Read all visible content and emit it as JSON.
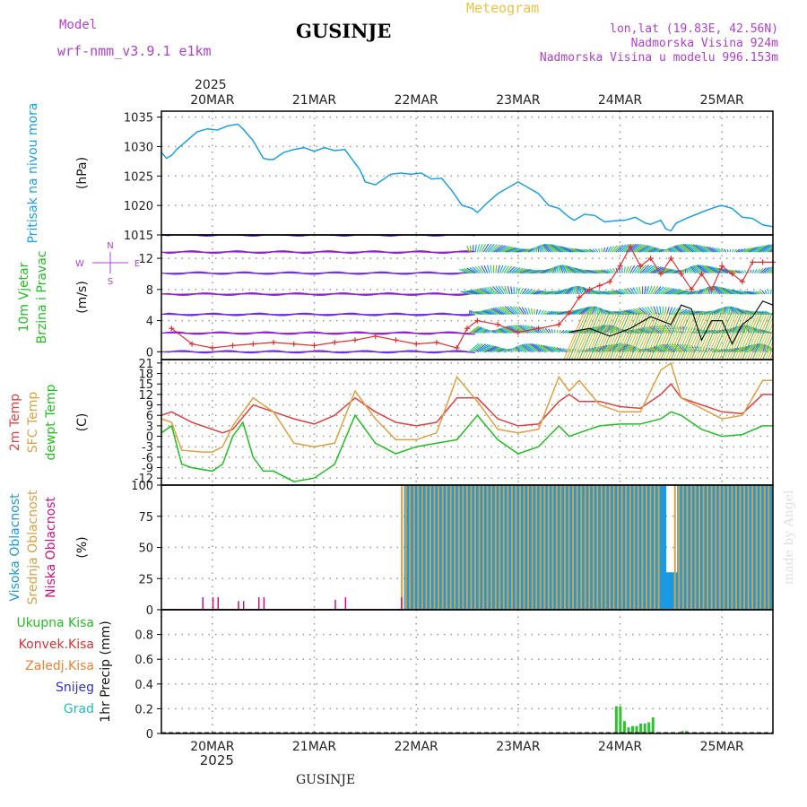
{
  "header": {
    "model_label": "Model",
    "model_name": "wrf-nmm_v3.9.1 e1km",
    "station": "GUSINJE",
    "meteogram": "Meteogram",
    "lonlat": "lon,lat (19.83E, 42.56N)",
    "elevation": "Nadmorska Visina 924m",
    "model_elevation": "Nadmorska Visina u modelu 996.153m",
    "made_by": "made by Angel",
    "footer": "GUSINJE"
  },
  "colors": {
    "pressure": "#1aa0e6",
    "wind_label": "#20c020",
    "temp": "#e04040",
    "sfc": "#e0a040",
    "dew": "#20c020",
    "high_cloud": "#1a9ae0",
    "mid_cloud": "#d8a040",
    "low_cloud": "#d01080",
    "precip": "#30c030",
    "grid": "#999999"
  },
  "chart_data": {
    "type": "meteogram",
    "time_axis": {
      "year": "2025",
      "day_labels": [
        "20MAR",
        "21MAR",
        "22MAR",
        "23MAR",
        "24MAR",
        "25MAR"
      ],
      "start_day": 19.5,
      "end_day": 25.5
    },
    "panels": [
      {
        "id": "pressure",
        "type": "line",
        "ylabel_lines": [
          "Pritisak na nivou mora"
        ],
        "unit": "(hPa)",
        "yticks": [
          1015,
          1020,
          1025,
          1030,
          1035
        ],
        "ylim": [
          1015,
          1036
        ],
        "series": [
          {
            "x": [
              19.5,
              19.55,
              19.6,
              19.65,
              19.75,
              19.85,
              19.95,
              20.05,
              20.15,
              20.25,
              20.3,
              20.4,
              20.5,
              20.55,
              20.6,
              20.7,
              20.8,
              20.9,
              21.0,
              21.1,
              21.2,
              21.3,
              21.45,
              21.5,
              21.6,
              21.75,
              21.85,
              21.95,
              22.05,
              22.15,
              22.25,
              22.35,
              22.45,
              22.55,
              22.6,
              22.7,
              22.8,
              22.9,
              23.0,
              23.1,
              23.2,
              23.3,
              23.4,
              23.5,
              23.55,
              23.65,
              23.75,
              23.85,
              23.95,
              24.05,
              24.15,
              24.25,
              24.3,
              24.4,
              24.45,
              24.5,
              24.55,
              24.65,
              24.75,
              24.85,
              24.95,
              25.0,
              25.1,
              25.2,
              25.3,
              25.4,
              25.5
            ],
            "y": [
              1029,
              1028,
              1028.5,
              1029.5,
              1031,
              1032.5,
              1033,
              1032.8,
              1033.5,
              1033.8,
              1033,
              1031,
              1028,
              1027.8,
              1027.8,
              1029,
              1029.5,
              1029.8,
              1029.2,
              1029.8,
              1029.3,
              1029.5,
              1026,
              1024,
              1023.5,
              1025.3,
              1025.5,
              1025.3,
              1025.5,
              1024.5,
              1024.6,
              1022.5,
              1020,
              1019.5,
              1018.8,
              1020.5,
              1022,
              1023,
              1024,
              1023,
              1022,
              1020,
              1019.5,
              1018,
              1017.5,
              1018.5,
              1018.3,
              1017.2,
              1017.4,
              1017.5,
              1018,
              1017,
              1016.8,
              1017.5,
              1016,
              1015.7,
              1017,
              1017.8,
              1018.5,
              1019.2,
              1019.8,
              1020,
              1019.5,
              1018,
              1017.8,
              1016.7,
              1016.4
            ]
          }
        ]
      },
      {
        "id": "wind",
        "type": "wind_barbs",
        "ylabel_lines": [
          "10m Vjetar",
          "Brzina i Pravac"
        ],
        "unit": "(m/s)",
        "compass": [
          "N",
          "S",
          "W",
          "E"
        ],
        "yticks": [
          0,
          4,
          8,
          12
        ],
        "ylim": [
          -1,
          15
        ],
        "series": [
          {
            "name": "speed_red",
            "x": [
              19.6,
              19.8,
              20.0,
              20.2,
              20.4,
              20.6,
              20.8,
              21.0,
              21.2,
              21.4,
              21.6,
              21.8,
              22.0,
              22.2,
              22.4,
              22.5,
              22.6,
              22.8,
              23.0,
              23.2,
              23.4,
              23.5,
              23.6,
              23.7,
              23.8,
              23.9,
              24.0,
              24.1,
              24.2,
              24.3,
              24.4,
              24.5,
              24.6,
              24.7,
              24.8,
              24.9,
              25.0,
              25.1,
              25.2,
              25.3,
              25.4,
              25.5
            ],
            "y": [
              3,
              1,
              0.5,
              0.8,
              1,
              1.2,
              1,
              0.8,
              1.2,
              1.5,
              2,
              1.5,
              1,
              1.2,
              0.5,
              3,
              4,
              3.5,
              2.5,
              3,
              3.5,
              5,
              7,
              8,
              8.5,
              9,
              11,
              13.5,
              11,
              12,
              10,
              12,
              10,
              8,
              10,
              8,
              11,
              10,
              9,
              11.5,
              11.5,
              11.5
            ]
          },
          {
            "name": "speed_black",
            "x": [
              23.5,
              23.7,
              23.9,
              24.1,
              24.3,
              24.5,
              24.6,
              24.7,
              24.8,
              24.9,
              25.0,
              25.1,
              25.2,
              25.3,
              25.4,
              25.5
            ],
            "y": [
              2.5,
              3,
              2,
              3,
              4.5,
              3.5,
              6,
              5.5,
              1.5,
              4,
              4,
              1,
              3.5,
              4.5,
              6.5,
              6
            ]
          }
        ],
        "barbs": {
          "rows": [
            0,
            2.4,
            4.8,
            7.4,
            10.1,
            12.8,
            15
          ],
          "color_old": "#9020d0",
          "color_new": [
            "#20a0e0",
            "#30d0a0",
            "#70c030",
            "#4060e0"
          ]
        }
      },
      {
        "id": "temperature",
        "type": "line",
        "ylabel_lines": [
          "2m Temp",
          "SFC Temp",
          "dewpt Temp"
        ],
        "unit": "(C)",
        "yticks": [
          -12,
          -9,
          -6,
          -3,
          0,
          3,
          6,
          9,
          12,
          15,
          18,
          21
        ],
        "ylim": [
          -14,
          22
        ],
        "series": [
          {
            "name": "2m Temp",
            "x": [
              19.5,
              19.6,
              19.8,
              20.0,
              20.1,
              20.2,
              20.4,
              20.6,
              20.8,
              21.0,
              21.2,
              21.4,
              21.6,
              21.8,
              22.0,
              22.2,
              22.4,
              22.6,
              22.8,
              23.0,
              23.2,
              23.4,
              23.5,
              23.6,
              23.8,
              24.0,
              24.2,
              24.4,
              24.5,
              24.6,
              24.8,
              25.0,
              25.2,
              25.4,
              25.5
            ],
            "y": [
              6,
              7,
              4,
              2,
              1,
              2,
              9,
              7,
              5,
              3.5,
              6,
              11,
              7,
              4,
              3,
              4,
              11,
              11,
              5,
              3,
              3.5,
              10,
              12,
              10,
              10,
              8.5,
              8,
              12,
              15,
              11,
              9,
              7,
              6.5,
              12,
              12
            ]
          },
          {
            "name": "SFC Temp",
            "x": [
              19.5,
              19.6,
              19.7,
              19.9,
              20.0,
              20.1,
              20.2,
              20.4,
              20.6,
              20.8,
              21.0,
              21.2,
              21.4,
              21.6,
              21.8,
              22.0,
              22.2,
              22.4,
              22.6,
              22.8,
              23.0,
              23.2,
              23.4,
              23.5,
              23.6,
              23.8,
              24.0,
              24.2,
              24.4,
              24.5,
              24.6,
              24.8,
              25.0,
              25.2,
              25.4,
              25.5
            ],
            "y": [
              5,
              4,
              -4,
              -4.5,
              -4.5,
              -3,
              3,
              11,
              7,
              -2,
              -3,
              -2,
              13,
              5,
              -1,
              -1,
              1,
              17,
              10,
              2,
              1,
              2,
              17,
              13,
              16,
              9,
              7,
              7,
              19,
              21,
              11,
              8,
              5,
              6,
              16,
              16
            ]
          },
          {
            "name": "dewpt Temp",
            "x": [
              19.5,
              19.6,
              19.7,
              19.8,
              20.0,
              20.1,
              20.2,
              20.3,
              20.4,
              20.5,
              20.6,
              20.8,
              21.0,
              21.2,
              21.4,
              21.6,
              21.8,
              22.0,
              22.2,
              22.4,
              22.6,
              22.8,
              23.0,
              23.2,
              23.4,
              23.5,
              23.6,
              23.8,
              24.0,
              24.2,
              24.4,
              24.5,
              24.6,
              24.8,
              25.0,
              25.2,
              25.4,
              25.5
            ],
            "y": [
              1,
              3,
              -8,
              -9,
              -10,
              -8,
              0,
              4,
              -6,
              -10,
              -10,
              -13,
              -12,
              -8,
              6,
              -2,
              -5,
              -3,
              -2,
              -1,
              6,
              -1,
              -5,
              -3,
              3,
              0,
              1,
              3,
              3.5,
              3.5,
              5,
              7,
              6,
              2,
              0,
              0.5,
              3,
              3
            ]
          }
        ]
      },
      {
        "id": "clouds",
        "type": "bar",
        "ylabel_lines": [
          "Visoka Oblacnost",
          "Srednja Oblacnost",
          "Niska Oblacnost"
        ],
        "unit": "(%)",
        "yticks": [
          0,
          25,
          50,
          75,
          100
        ],
        "ylim": [
          0,
          100
        ],
        "series": [
          {
            "name": "Visoka Oblacnost",
            "x_start": 21.85,
            "x_end": 25.5,
            "value": 100,
            "gap_x": [
              24.4,
              24.5
            ],
            "gap_value": 30
          },
          {
            "name": "Srednja Oblacnost",
            "x_start": 21.85,
            "x_end": 25.5,
            "value": 100,
            "gap_x": [
              24.4,
              24.5
            ],
            "gap_value": 0
          },
          {
            "name": "Niska Oblacnost",
            "x": [
              19.9,
              20.0,
              20.05,
              20.25,
              20.3,
              20.45,
              20.5,
              21.2,
              21.3,
              21.85
            ],
            "values": [
              10,
              10,
              10,
              7,
              7,
              10,
              10,
              8,
              10,
              10
            ]
          }
        ]
      },
      {
        "id": "precip",
        "type": "bar",
        "ylabel_lines": [
          "1hr Precip (mm)"
        ],
        "legend": [
          {
            "label": "Ukupna Kisa",
            "color": "#20c020"
          },
          {
            "label": "Konvek.Kisa",
            "color": "#e03030"
          },
          {
            "label": "Zaledj.Kisa",
            "color": "#f08030"
          },
          {
            "label": "Snijeg",
            "color": "#3030e0"
          },
          {
            "label": "Grad",
            "color": "#20c0c0"
          }
        ],
        "yticks": [
          0,
          0.2,
          0.4,
          0.6,
          0.8
        ],
        "ylim": [
          0,
          1.0
        ],
        "series": [
          {
            "name": "Ukupna Kisa",
            "x": [
              23.95,
              23.99,
              24.03,
              24.07,
              24.11,
              24.15,
              24.19,
              24.23,
              24.27,
              24.31,
              24.6,
              24.64
            ],
            "values": [
              0.22,
              0.22,
              0.1,
              0.05,
              0.06,
              0.06,
              0.08,
              0.08,
              0.09,
              0.13,
              0.02,
              0.02
            ]
          }
        ]
      }
    ]
  }
}
